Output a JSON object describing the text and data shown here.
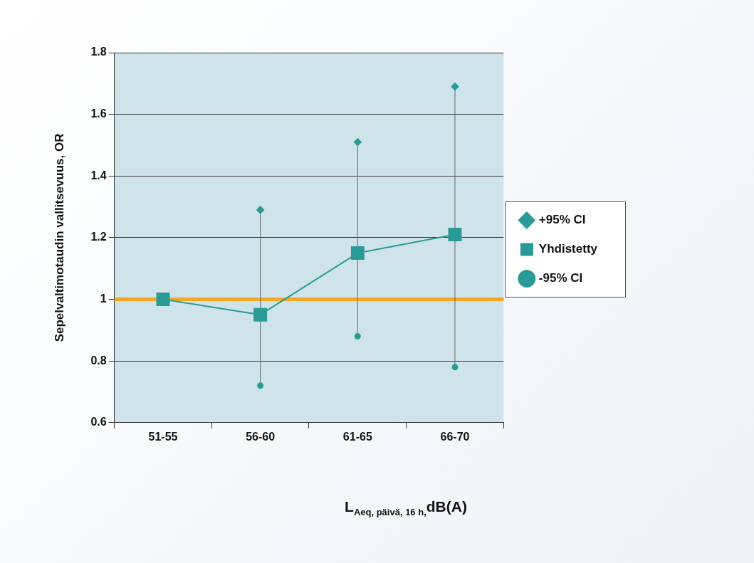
{
  "chart_data": {
    "type": "line",
    "xlabel": "L$_{Aeq, päivä, 16 h,}$dB(A)",
    "ylabel": "Sepelvaltimotaudin vallitsevuus, OR",
    "categories": [
      "51-55",
      "56-60",
      "61-65",
      "66-70"
    ],
    "ylim": [
      0.6,
      1.8
    ],
    "yticks": [
      {
        "value": 0.6,
        "label": "0.6"
      },
      {
        "value": 0.8,
        "label": "0.8"
      },
      1,
      {
        "value": 1.2,
        "label": "1.2"
      },
      {
        "value": 1.4,
        "label": "1.4"
      },
      {
        "value": 1.6,
        "label": "1.6"
      },
      {
        "value": 1.8,
        "label": "1.8"
      }
    ],
    "grid": "y",
    "legend": "right",
    "ref_lines": [
      {
        "axis": "y",
        "value": 1,
        "color": "#f5a623"
      }
    ],
    "series": [
      {
        "name": "+95% CI",
        "type": "scatter",
        "marker": "diamond",
        "color": "#2a9a96",
        "values": [
          null,
          1.29,
          1.51,
          1.69
        ]
      },
      {
        "name": "Yhdistetty",
        "marker": "square",
        "color": "#2a9a96",
        "values": [
          1.0,
          0.95,
          1.15,
          1.21
        ]
      },
      {
        "name": "-95% CI",
        "type": "scatter",
        "marker": "circle",
        "color": "#2a9a96",
        "values": [
          null,
          0.72,
          0.88,
          0.78
        ]
      }
    ]
  }
}
